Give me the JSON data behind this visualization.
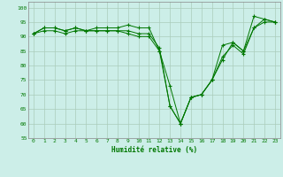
{
  "title": "",
  "xlabel": "Humidité relative (%)",
  "ylabel": "",
  "xlim": [
    -0.5,
    23.5
  ],
  "ylim": [
    55,
    102
  ],
  "yticks": [
    55,
    60,
    65,
    70,
    75,
    80,
    85,
    90,
    95,
    100
  ],
  "xticks": [
    0,
    1,
    2,
    3,
    4,
    5,
    6,
    7,
    8,
    9,
    10,
    11,
    12,
    13,
    14,
    15,
    16,
    17,
    18,
    19,
    20,
    21,
    22,
    23
  ],
  "background_color": "#cceee8",
  "grid_color": "#aaccbb",
  "line_color": "#007700",
  "series1": [
    91,
    93,
    93,
    92,
    93,
    92,
    93,
    93,
    93,
    94,
    93,
    93,
    85,
    73,
    60,
    69,
    70,
    75,
    87,
    88,
    85,
    97,
    96,
    95
  ],
  "series2": [
    91,
    93,
    93,
    92,
    93,
    92,
    92,
    92,
    92,
    92,
    91,
    91,
    86,
    66,
    60,
    69,
    70,
    75,
    82,
    88,
    85,
    93,
    96,
    95
  ],
  "series3": [
    91,
    92,
    92,
    91,
    92,
    92,
    92,
    92,
    92,
    91,
    90,
    90,
    85,
    66,
    60,
    69,
    70,
    75,
    83,
    87,
    84,
    93,
    95,
    95
  ]
}
